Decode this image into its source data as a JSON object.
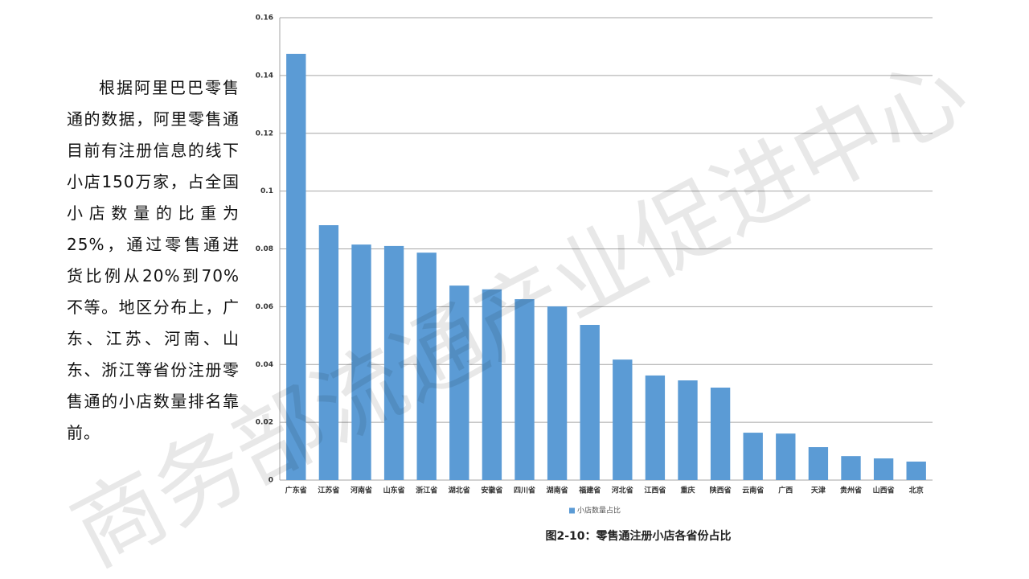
{
  "paragraph": "根据阿里巴巴零售通的数据，阿里零售通目前有注册信息的线下小店150万家，占全国小店数量的比重为25%，通过零售通进货比例从20%到70%不等。地区分布上，广东、江苏、河南、山东、浙江等省份注册零售通的小店数量排名靠前。",
  "watermark": "商务部流通产业促进中心",
  "chart_data": {
    "type": "bar",
    "caption": "图2-10：零售通注册小店各省份占比",
    "categories": [
      "广东省",
      "江苏省",
      "河南省",
      "山东省",
      "浙江省",
      "湖北省",
      "安徽省",
      "四川省",
      "湖南省",
      "福建省",
      "河北省",
      "江西省",
      "重庆",
      "陕西省",
      "云南省",
      "广西",
      "天津",
      "贵州省",
      "山西省",
      "北京"
    ],
    "series": [
      {
        "name": "小店数量占比",
        "color": "#5b9bd5",
        "values": [
          0.1475,
          0.0882,
          0.0815,
          0.081,
          0.0787,
          0.0673,
          0.066,
          0.0626,
          0.0601,
          0.0537,
          0.0417,
          0.0362,
          0.0345,
          0.032,
          0.0164,
          0.0161,
          0.0114,
          0.0083,
          0.0075,
          0.0064
        ]
      }
    ],
    "ylim": [
      0,
      0.16
    ],
    "yticks": [
      0,
      0.02,
      0.04,
      0.06,
      0.08,
      0.1,
      0.12,
      0.14,
      0.16
    ],
    "grid": true,
    "legend": "bottom"
  }
}
